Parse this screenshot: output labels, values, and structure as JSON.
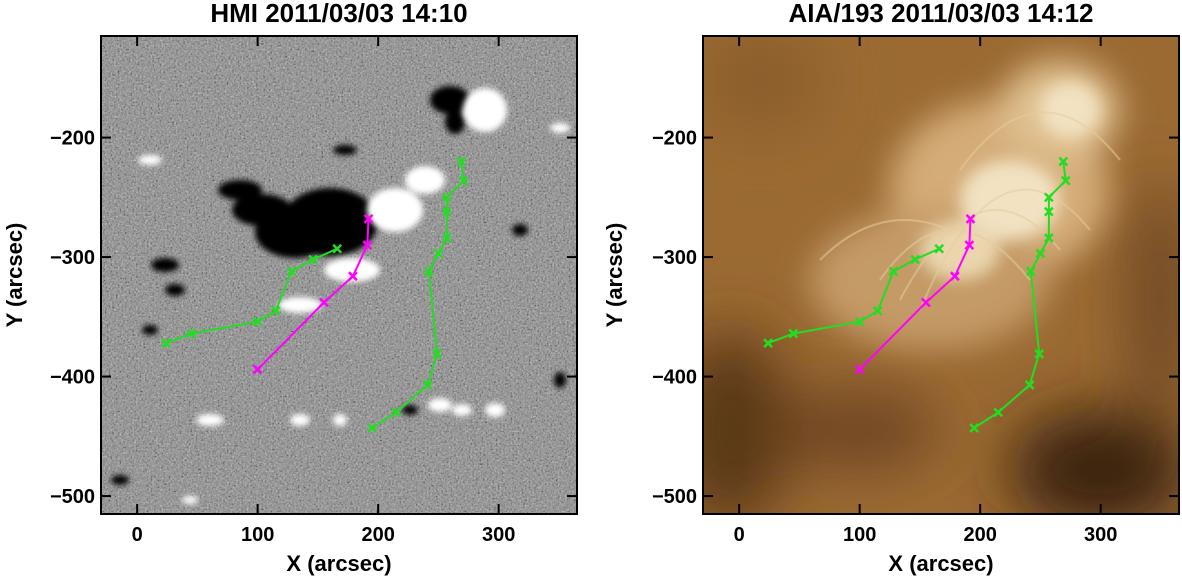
{
  "panels": [
    {
      "title": "HMI 2011/03/03 14:10",
      "image": "magnetogram",
      "colors": {
        "background": "#8a8a8a",
        "positive": "#ffffff",
        "negative": "#000000"
      }
    },
    {
      "title": "AIA/193 2011/03/03 14:12",
      "image": "euv-193",
      "colors": {
        "background": "#9b6a33",
        "bright": "#f2e2c2",
        "dark": "#3b2410"
      }
    }
  ],
  "chart_data": [
    {
      "type": "line",
      "title": "HMI 2011/03/03 14:10",
      "xlabel": "X (arcsec)",
      "ylabel": "Y (arcsec)",
      "xlim": [
        -30,
        365
      ],
      "ylim": [
        -515,
        -115
      ],
      "xticks": [
        0,
        100,
        200,
        300
      ],
      "yticks": [
        -500,
        -400,
        -300,
        -200
      ],
      "series": [
        {
          "color": "#22dd22",
          "points": [
            [
              24,
              -372
            ],
            [
              45,
              -364
            ],
            [
              100,
              -354
            ],
            [
              115,
              -345
            ],
            [
              128,
              -312
            ],
            [
              146,
              -302
            ],
            [
              166,
              -293
            ]
          ]
        },
        {
          "color": "#ff00ff",
          "points": [
            [
              100,
              -394
            ],
            [
              155,
              -338
            ],
            [
              179,
              -316
            ],
            [
              191,
              -290
            ],
            [
              192,
              -268
            ]
          ]
        },
        {
          "color": "#22dd22",
          "points": [
            [
              195,
              -443
            ],
            [
              215,
              -430
            ],
            [
              241,
              -407
            ],
            [
              249,
              -381
            ],
            [
              242,
              -312
            ],
            [
              250,
              -297
            ],
            [
              257,
              -284
            ],
            [
              257,
              -262
            ],
            [
              257,
              -250
            ],
            [
              271,
              -236
            ],
            [
              269,
              -220
            ]
          ]
        }
      ]
    },
    {
      "type": "line",
      "title": "AIA/193 2011/03/03 14:12",
      "xlabel": "X (arcsec)",
      "ylabel": "Y (arcsec)",
      "xlim": [
        -30,
        365
      ],
      "ylim": [
        -515,
        -115
      ],
      "xticks": [
        0,
        100,
        200,
        300
      ],
      "yticks": [
        -500,
        -400,
        -300,
        -200
      ],
      "series": [
        {
          "color": "#22dd22",
          "points": [
            [
              24,
              -372
            ],
            [
              45,
              -364
            ],
            [
              100,
              -354
            ],
            [
              115,
              -345
            ],
            [
              128,
              -312
            ],
            [
              146,
              -302
            ],
            [
              166,
              -293
            ]
          ]
        },
        {
          "color": "#ff00ff",
          "points": [
            [
              100,
              -394
            ],
            [
              155,
              -338
            ],
            [
              179,
              -316
            ],
            [
              191,
              -290
            ],
            [
              192,
              -268
            ]
          ]
        },
        {
          "color": "#22dd22",
          "points": [
            [
              195,
              -443
            ],
            [
              215,
              -430
            ],
            [
              241,
              -407
            ],
            [
              249,
              -381
            ],
            [
              242,
              -312
            ],
            [
              250,
              -297
            ],
            [
              257,
              -284
            ],
            [
              257,
              -262
            ],
            [
              257,
              -250
            ],
            [
              271,
              -236
            ],
            [
              269,
              -220
            ]
          ]
        }
      ]
    }
  ]
}
